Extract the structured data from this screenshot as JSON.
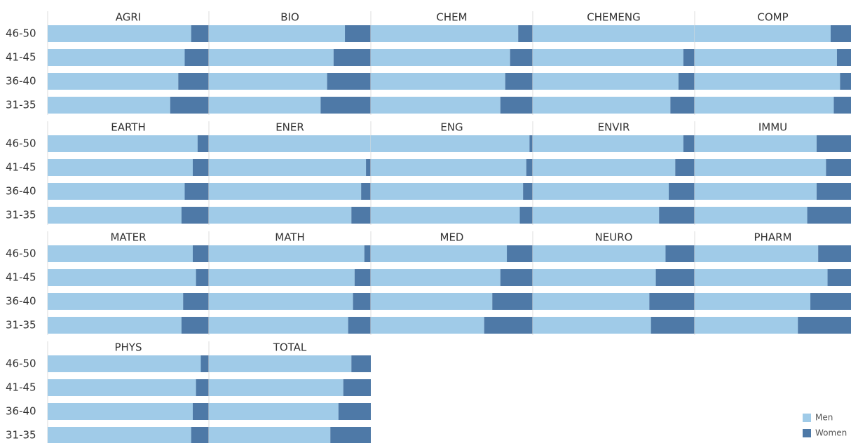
{
  "chart_data": {
    "type": "bar",
    "stacked": true,
    "categories": [
      "46-50",
      "41-45",
      "36-40",
      "31-35"
    ],
    "xlim": [
      0,
      100
    ],
    "series": [
      {
        "name": "Men",
        "color": "#a0cbe8"
      },
      {
        "name": "Women",
        "color": "#4e79a7"
      }
    ],
    "panels": [
      {
        "title": "AGRI",
        "series_values": [
          [
            89,
            85,
            81,
            76
          ],
          [
            11,
            15,
            19,
            24
          ]
        ]
      },
      {
        "title": "BIO",
        "series_values": [
          [
            84,
            77,
            73,
            69
          ],
          [
            16,
            23,
            27,
            31
          ]
        ]
      },
      {
        "title": "CHEM",
        "series_values": [
          [
            91,
            86,
            83,
            80
          ],
          [
            9,
            14,
            17,
            20
          ]
        ]
      },
      {
        "title": "CHEMENG",
        "series_values": [
          [
            100,
            93,
            90,
            85
          ],
          [
            0,
            7,
            10,
            15
          ]
        ]
      },
      {
        "title": "COMP",
        "series_values": [
          [
            87,
            91,
            93,
            89
          ],
          [
            13,
            9,
            7,
            11
          ]
        ]
      },
      {
        "title": "EARTH",
        "series_values": [
          [
            93,
            90,
            85,
            83
          ],
          [
            7,
            10,
            15,
            17
          ]
        ]
      },
      {
        "title": "ENER",
        "series_values": [
          [
            100,
            97,
            94,
            88
          ],
          [
            0,
            3,
            6,
            12
          ]
        ]
      },
      {
        "title": "ENG",
        "series_values": [
          [
            98,
            96,
            94,
            92
          ],
          [
            2,
            4,
            6,
            8
          ]
        ]
      },
      {
        "title": "ENVIR",
        "series_values": [
          [
            93,
            88,
            84,
            78
          ],
          [
            7,
            12,
            16,
            22
          ]
        ]
      },
      {
        "title": "IMMU",
        "series_values": [
          [
            78,
            84,
            78,
            72
          ],
          [
            22,
            16,
            22,
            28
          ]
        ]
      },
      {
        "title": "MATER",
        "series_values": [
          [
            90,
            92,
            84,
            83
          ],
          [
            10,
            8,
            16,
            17
          ]
        ]
      },
      {
        "title": "MATH",
        "series_values": [
          [
            96,
            90,
            89,
            86
          ],
          [
            4,
            10,
            11,
            14
          ]
        ]
      },
      {
        "title": "MED",
        "series_values": [
          [
            84,
            80,
            75,
            70
          ],
          [
            16,
            20,
            25,
            30
          ]
        ]
      },
      {
        "title": "NEURO",
        "series_values": [
          [
            82,
            76,
            72,
            73
          ],
          [
            18,
            24,
            28,
            27
          ]
        ]
      },
      {
        "title": "PHARM",
        "series_values": [
          [
            79,
            85,
            74,
            66
          ],
          [
            21,
            15,
            26,
            34
          ]
        ]
      },
      {
        "title": "PHYS",
        "series_values": [
          [
            95,
            92,
            90,
            89
          ],
          [
            5,
            8,
            10,
            11
          ]
        ]
      },
      {
        "title": "TOTAL",
        "series_values": [
          [
            88,
            83,
            80,
            75
          ],
          [
            12,
            17,
            20,
            25
          ]
        ]
      }
    ]
  }
}
